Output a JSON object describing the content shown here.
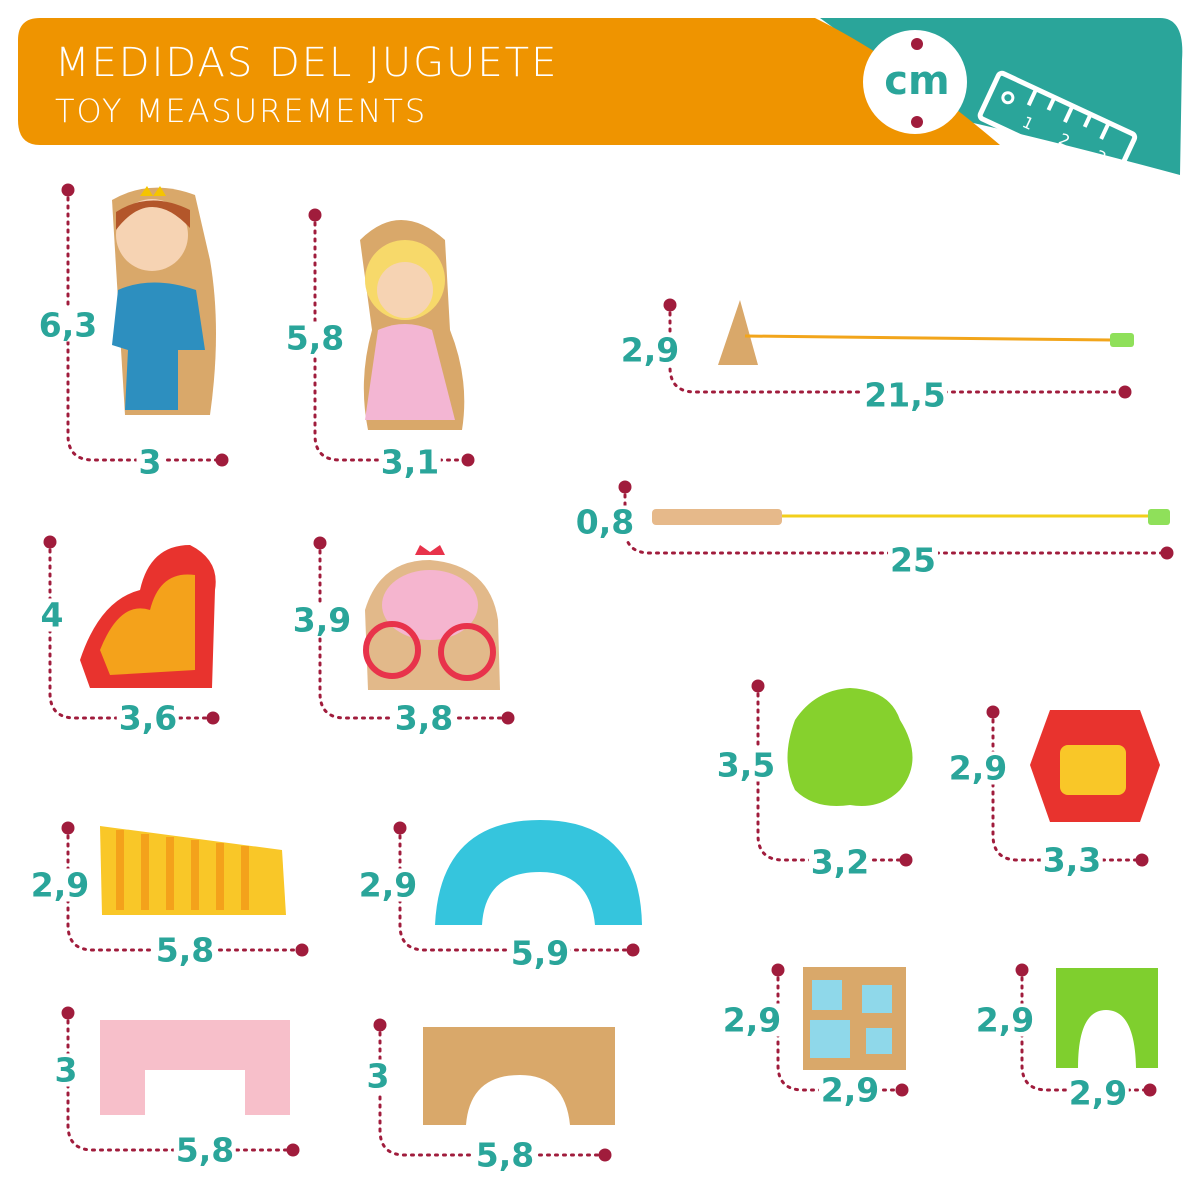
{
  "header": {
    "title_es": "MEDIDAS DEL JUGUETE",
    "title_en": "TOY MEASUREMENTS",
    "unit_badge": "cm",
    "ruler_numbers": [
      "1",
      "2",
      "3"
    ]
  },
  "colors": {
    "banner_orange": "#ef9400",
    "banner_teal": "#2aa59a",
    "label_teal": "#2aa59a",
    "dimension_line": "#a01c3c"
  },
  "toys": [
    {
      "name": "prince",
      "height": "6,3",
      "width": "3"
    },
    {
      "name": "princess",
      "height": "5,8",
      "width": "3,1"
    },
    {
      "name": "dragon",
      "height": "4",
      "width": "3,6"
    },
    {
      "name": "carriage",
      "height": "3,9",
      "width": "3,8"
    },
    {
      "name": "yellow-block",
      "height": "2,9",
      "width": "5,8"
    },
    {
      "name": "blue-arch",
      "height": "2,9",
      "width": "5,9"
    },
    {
      "name": "pink-bridge",
      "height": "3",
      "width": "5,8"
    },
    {
      "name": "wood-bridge",
      "height": "3",
      "width": "5,8"
    },
    {
      "name": "triangle-lace",
      "height": "2,9",
      "width": "21,5"
    },
    {
      "name": "stick-lace",
      "height": "0,8",
      "width": "25"
    },
    {
      "name": "tree",
      "height": "3,5",
      "width": "3,2"
    },
    {
      "name": "hexagon-window",
      "height": "2,9",
      "width": "3,3"
    },
    {
      "name": "window-block",
      "height": "2,9",
      "width": "2,9"
    },
    {
      "name": "green-arch",
      "height": "2,9",
      "width": "2,9"
    }
  ]
}
